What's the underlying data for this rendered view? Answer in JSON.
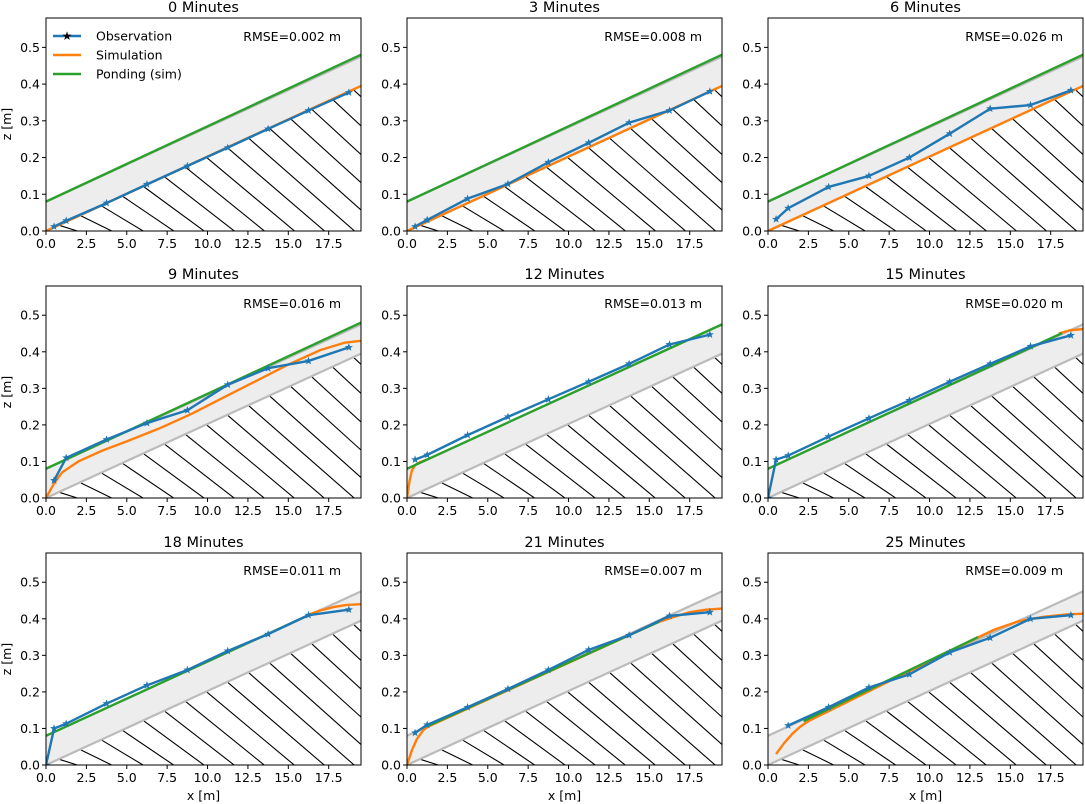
{
  "figure": {
    "xlabel": "x [m]",
    "ylabel": "z [m]",
    "xlim": [
      0,
      19.5
    ],
    "ylim": [
      0,
      0.58
    ],
    "xticks": [
      "0.0",
      "2.5",
      "5.0",
      "7.5",
      "10.0",
      "12.5",
      "15.0",
      "17.5"
    ],
    "xtick_values": [
      0,
      2.5,
      5,
      7.5,
      10,
      12.5,
      15,
      17.5
    ],
    "yticks": [
      "0.0",
      "0.1",
      "0.2",
      "0.3",
      "0.4",
      "0.5"
    ],
    "ytick_values": [
      0,
      0.1,
      0.2,
      0.3,
      0.4,
      0.5
    ]
  },
  "legend": {
    "observation": "Observation",
    "simulation": "Simulation",
    "ponding": "Ponding (sim)"
  },
  "colors": {
    "observation": "#1f77b4",
    "simulation": "#ff7f0e",
    "ponding": "#2ca02c",
    "bed": "#bbbbbb",
    "band": "#ededed"
  },
  "chart_data": [
    {
      "type": "line",
      "title": "0 Minutes",
      "rmse": "RMSE=0.002 m",
      "observation_x": [
        0.5,
        1.25,
        3.75,
        6.25,
        8.75,
        11.25,
        13.75,
        16.25,
        18.75
      ],
      "observation_z": [
        0.012,
        0.028,
        0.076,
        0.127,
        0.177,
        0.227,
        0.278,
        0.328,
        0.377
      ],
      "simulation_x": [
        0,
        19.5
      ],
      "simulation_z": [
        0,
        0.395
      ],
      "ponding_x": [
        0,
        19.5
      ],
      "ponding_z": [
        0.08,
        0.48
      ]
    },
    {
      "type": "line",
      "title": "3 Minutes",
      "rmse": "RMSE=0.008 m",
      "observation_x": [
        0.5,
        1.25,
        3.75,
        6.25,
        8.75,
        11.25,
        13.75,
        16.25,
        18.75
      ],
      "observation_z": [
        0.012,
        0.03,
        0.088,
        0.128,
        0.187,
        0.24,
        0.295,
        0.328,
        0.38
      ],
      "simulation_x": [
        0,
        19.5
      ],
      "simulation_z": [
        0,
        0.395
      ],
      "ponding_x": [
        0,
        19.5
      ],
      "ponding_z": [
        0.08,
        0.48
      ]
    },
    {
      "type": "line",
      "title": "6 Minutes",
      "rmse": "RMSE=0.026 m",
      "observation_x": [
        0.5,
        1.25,
        3.75,
        6.25,
        8.75,
        11.25,
        13.75,
        16.25,
        18.75
      ],
      "observation_z": [
        0.032,
        0.062,
        0.12,
        0.15,
        0.2,
        0.265,
        0.333,
        0.343,
        0.383
      ],
      "simulation_x": [
        0,
        19.5
      ],
      "simulation_z": [
        0,
        0.395
      ],
      "ponding_x": [
        0,
        19.5
      ],
      "ponding_z": [
        0.08,
        0.48
      ]
    },
    {
      "type": "line",
      "title": "9 Minutes",
      "rmse": "RMSE=0.016 m",
      "observation_x": [
        0.5,
        1.25,
        3.75,
        6.25,
        8.75,
        11.25,
        13.75,
        16.25,
        18.75
      ],
      "observation_z": [
        0.048,
        0.11,
        0.16,
        0.205,
        0.24,
        0.31,
        0.355,
        0.375,
        0.412
      ],
      "simulation_x": [
        0,
        0.5,
        1.0,
        2.0,
        3.5,
        5.0,
        7.0,
        9.0,
        11.0,
        13.0,
        15.0,
        17.0,
        18.5,
        19.5
      ],
      "simulation_z": [
        0,
        0.04,
        0.07,
        0.1,
        0.13,
        0.155,
        0.19,
        0.23,
        0.275,
        0.32,
        0.365,
        0.405,
        0.425,
        0.43
      ],
      "ponding_x": [
        0,
        19.5
      ],
      "ponding_z": [
        0.08,
        0.48
      ]
    },
    {
      "type": "line",
      "title": "12 Minutes",
      "rmse": "RMSE=0.013 m",
      "observation_x": [
        0.5,
        1.25,
        3.75,
        6.25,
        8.75,
        11.25,
        13.75,
        16.25,
        18.75
      ],
      "observation_z": [
        0.105,
        0.118,
        0.172,
        0.222,
        0.27,
        0.318,
        0.367,
        0.42,
        0.447
      ],
      "simulation_x": [
        0,
        0.15,
        0.3,
        0.5,
        0.8,
        1.2
      ],
      "simulation_z": [
        0,
        0.045,
        0.075,
        0.09,
        0.098,
        0.105
      ],
      "ponding_x": [
        0,
        19.5
      ],
      "ponding_z": [
        0.08,
        0.475
      ]
    },
    {
      "type": "line",
      "title": "15 Minutes",
      "rmse": "RMSE=0.020 m",
      "observation_x": [
        0,
        0.5,
        1.25,
        3.75,
        6.25,
        8.75,
        11.25,
        13.75,
        16.25,
        18.75
      ],
      "observation_z": [
        0.0,
        0.105,
        0.116,
        0.168,
        0.218,
        0.267,
        0.318,
        0.367,
        0.415,
        0.445
      ],
      "simulation_x": [
        18.0,
        18.6,
        19.2,
        19.5
      ],
      "simulation_z": [
        0.45,
        0.458,
        0.461,
        0.462
      ],
      "ponding_x": [
        0,
        18.2
      ],
      "ponding_z": [
        0.08,
        0.451
      ]
    },
    {
      "type": "line",
      "title": "18 Minutes",
      "rmse": "RMSE=0.011 m",
      "observation_x": [
        0,
        0.5,
        1.25,
        3.75,
        6.25,
        8.75,
        11.25,
        13.75,
        16.25,
        18.75
      ],
      "observation_z": [
        0.0,
        0.1,
        0.113,
        0.168,
        0.218,
        0.26,
        0.312,
        0.358,
        0.41,
        0.425
      ],
      "simulation_x": [
        16.3,
        17.0,
        17.8,
        18.6,
        19.5
      ],
      "simulation_z": [
        0.412,
        0.423,
        0.432,
        0.438,
        0.44
      ],
      "ponding_x": [
        0,
        16.4
      ],
      "ponding_z": [
        0.08,
        0.413
      ]
    },
    {
      "type": "line",
      "title": "21 Minutes",
      "rmse": "RMSE=0.007 m",
      "observation_x": [
        0.5,
        1.25,
        3.75,
        6.25,
        8.75,
        11.25,
        13.75,
        16.25,
        18.75
      ],
      "observation_z": [
        0.088,
        0.11,
        0.158,
        0.208,
        0.26,
        0.315,
        0.355,
        0.408,
        0.418
      ],
      "simulation_x": [
        0,
        0.3,
        0.6,
        1.0,
        1.3,
        15.5,
        16.5,
        17.5,
        18.5,
        19.5
      ],
      "simulation_z": [
        0,
        0.04,
        0.07,
        0.095,
        0.105,
        0.39,
        0.405,
        0.418,
        0.425,
        0.428
      ],
      "ponding_x": [
        1.2,
        15.6
      ],
      "ponding_z": [
        0.105,
        0.392
      ]
    },
    {
      "type": "line",
      "title": "25 Minutes",
      "rmse": "RMSE=0.009 m",
      "observation_x": [
        1.25,
        3.75,
        6.25,
        8.75,
        11.25,
        13.75,
        16.25,
        18.75
      ],
      "observation_z": [
        0.108,
        0.158,
        0.212,
        0.248,
        0.308,
        0.348,
        0.4,
        0.41
      ],
      "simulation_x": [
        0.5,
        1.0,
        1.5,
        2.0,
        2.5,
        12.8,
        14.0,
        15.5,
        17.0,
        18.5,
        19.5
      ],
      "simulation_z": [
        0.03,
        0.06,
        0.085,
        0.105,
        0.12,
        0.345,
        0.37,
        0.393,
        0.405,
        0.412,
        0.414
      ],
      "ponding_x": [
        2.2,
        13.0
      ],
      "ponding_z": [
        0.12,
        0.35
      ]
    }
  ]
}
